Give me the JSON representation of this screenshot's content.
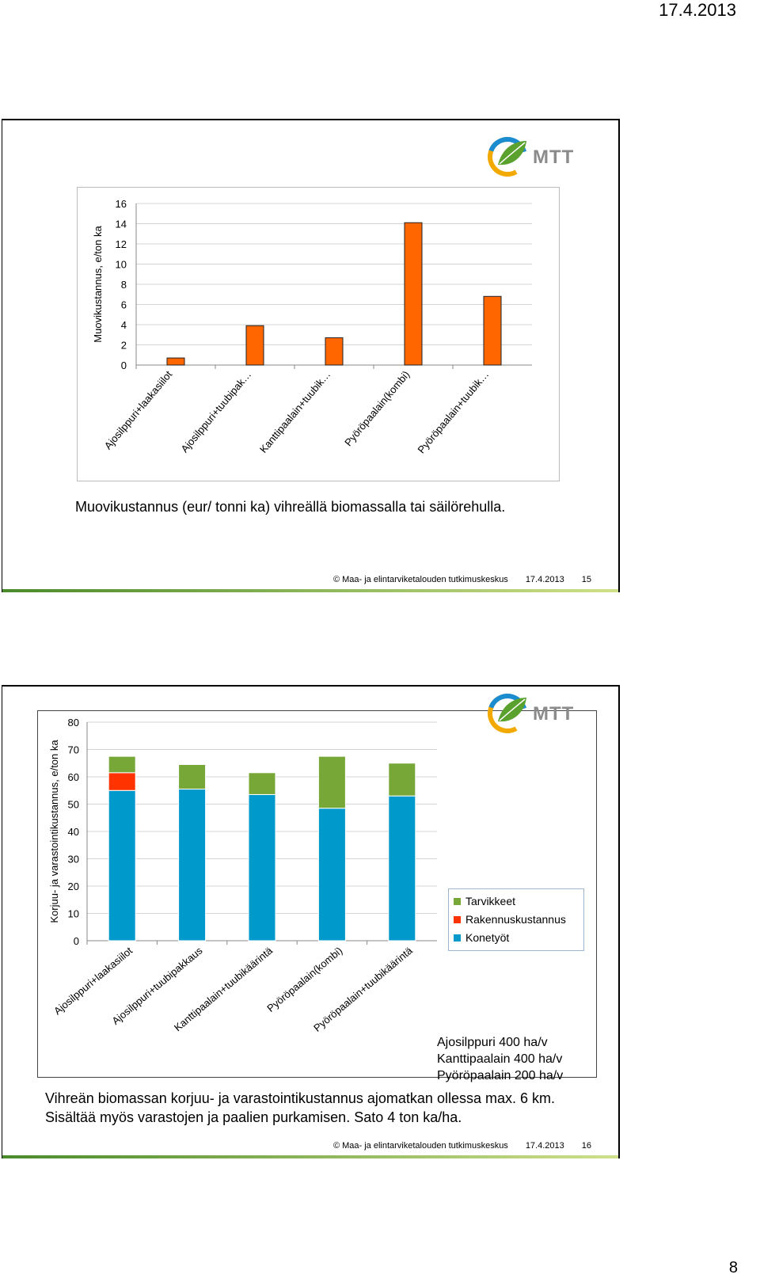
{
  "page": {
    "date": "17.4.2013",
    "number": "8"
  },
  "slides": [
    {
      "caption": "Muovikustannus (eur/ tonni ka) vihreällä biomassalla tai säilörehulla.",
      "footer": {
        "org": "© Maa- ja elintarviketalouden tutkimuskeskus",
        "date": "17.4.2013",
        "page": "15"
      },
      "logo": {
        "text": "MTT"
      }
    },
    {
      "caption": [
        "Vihreän biomassan korjuu- ja varastointikustannus ajomatkan ollessa max. 6 km.",
        "Sisältää myös varastojen ja paalien purkamisen. Sato 4 ton ka/ha."
      ],
      "footer": {
        "org": "© Maa- ja elintarviketalouden tutkimuskeskus",
        "date": "17.4.2013",
        "page": "16"
      },
      "logo": {
        "text": "MTT"
      },
      "notes": [
        "Ajosilppuri 400 ha/v",
        "Kanttipaalain 400 ha/v",
        "Pyöröpaalain 200 ha/v"
      ]
    }
  ],
  "chart_data": [
    {
      "type": "bar",
      "categories": [
        "Ajosilppuri+laakasiilot",
        "Ajosilppuri+tuubipak…",
        "Kanttipaalain+tuubik…",
        "Pyöröpaalain(kombi)",
        "Pyöröpaalain+tuubik…"
      ],
      "values": [
        0.7,
        3.9,
        2.7,
        14.1,
        6.8
      ],
      "ylabel": "Muovikustannus, e/ton ka",
      "ylim": [
        0,
        16
      ],
      "yticks": [
        0,
        2,
        4,
        6,
        8,
        10,
        12,
        14,
        16
      ],
      "color": "#ff6600",
      "grid": true
    },
    {
      "type": "bar",
      "stacked": true,
      "categories": [
        "Ajosilppuri+laakasiilot",
        "Ajosilppuri+tuubipakkaus",
        "Kanttipaalain+tuubikäärintä",
        "Pyöröpaalain(kombi)",
        "Pyöröpaalain+tuubikäärintä"
      ],
      "series": [
        {
          "name": "Konetyöt",
          "values": [
            55,
            55.5,
            53.5,
            48.5,
            53
          ],
          "color": "#0099cc"
        },
        {
          "name": "Rakennuskustannus",
          "values": [
            6.5,
            0,
            0,
            0,
            0
          ],
          "color": "#ff3300"
        },
        {
          "name": "Tarvikkeet",
          "values": [
            6,
            9,
            8,
            19,
            12
          ],
          "color": "#77a737"
        }
      ],
      "legend_order": [
        "Tarvikkeet",
        "Rakennuskustannus",
        "Konetyöt"
      ],
      "ylabel": "Korjuu- ja varastointikustannus, e/ton ka",
      "ylim": [
        0,
        80
      ],
      "yticks": [
        0,
        10,
        20,
        30,
        40,
        50,
        60,
        70,
        80
      ],
      "legend": "right",
      "grid": true
    }
  ]
}
